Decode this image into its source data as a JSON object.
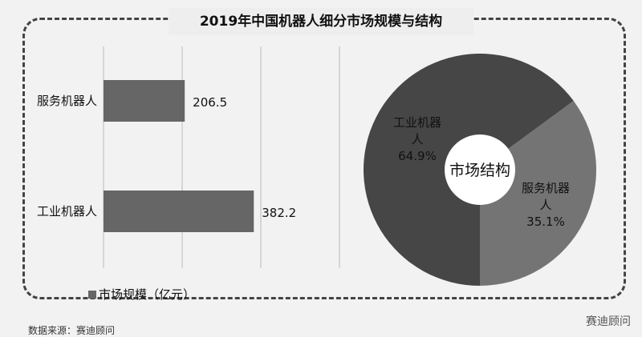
{
  "chart_data": [
    {
      "type": "bar",
      "orientation": "horizontal",
      "title": "2019年中国机器人细分市场规模与结构",
      "categories": [
        "服务机器人",
        "工业机器人"
      ],
      "series": [
        {
          "name": "市场规模（亿元）",
          "values": [
            206.5,
            382.2
          ]
        }
      ],
      "xlim": [
        0,
        600
      ],
      "grid": true,
      "legend": "bottom",
      "color": "#666666"
    },
    {
      "type": "pie",
      "donut": true,
      "center_label": "市场结构",
      "slices": [
        {
          "label": "工业机器人",
          "value": 64.9,
          "display": "64.9%",
          "color": "#464646"
        },
        {
          "label": "服务机器人",
          "value": 35.1,
          "display": "35.1%",
          "color": "#747474"
        }
      ]
    }
  ],
  "watermark": "赛迪顾问",
  "source": "数据来源：赛迪顾问"
}
